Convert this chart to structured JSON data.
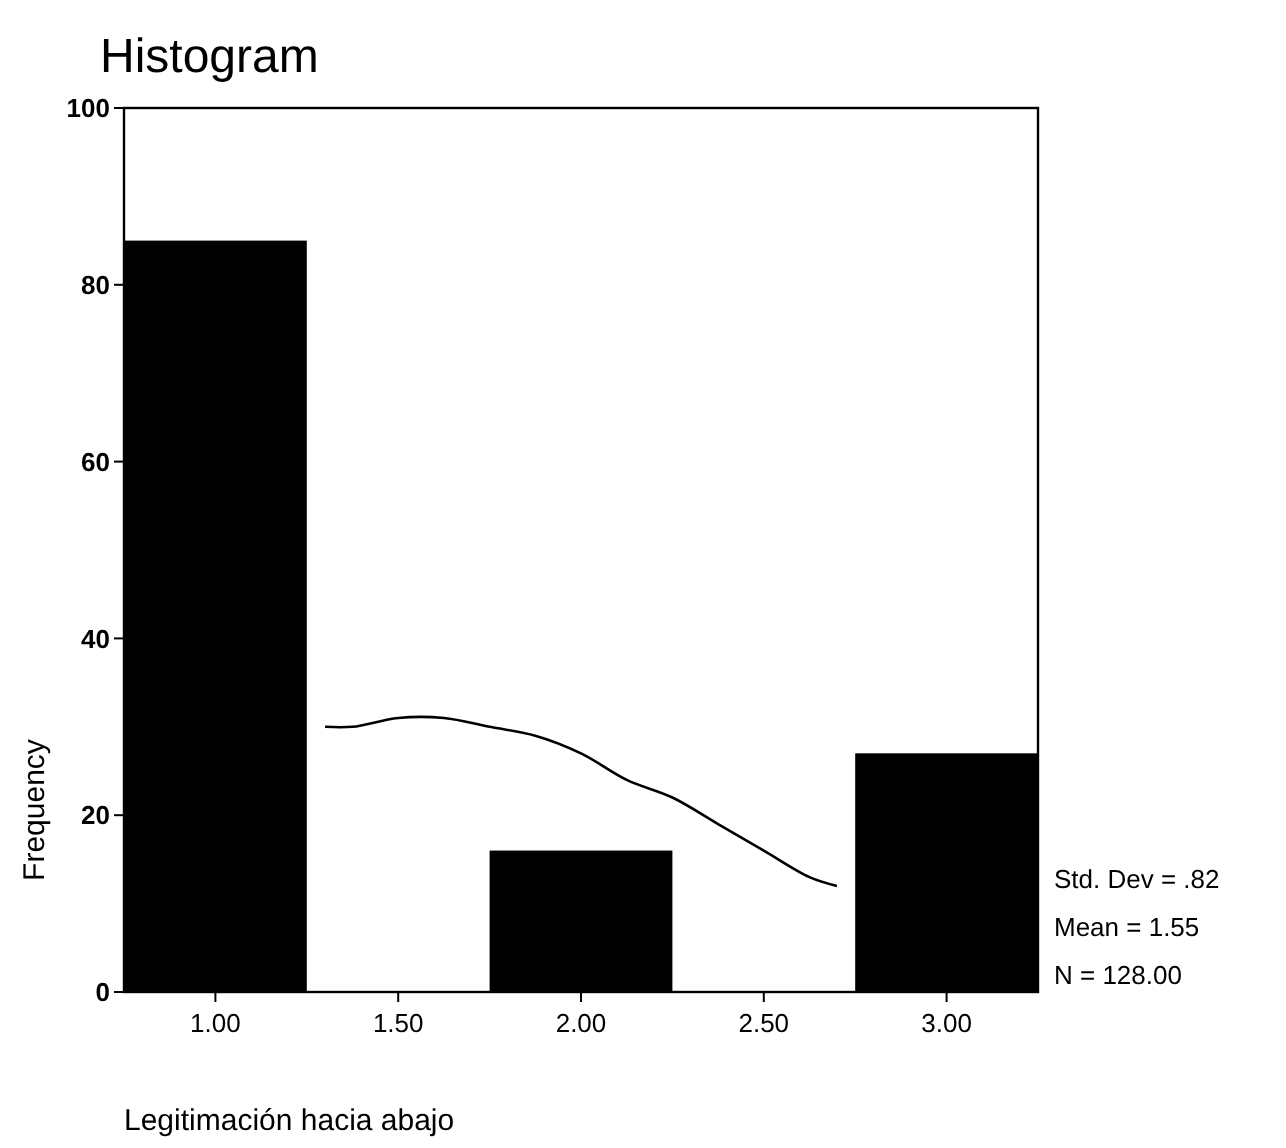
{
  "chart_data": {
    "type": "histogram",
    "title": "Histogram",
    "xlabel": "Legitimación hacia abajo",
    "ylabel": "Frequency",
    "bins": [
      0.75,
      1.25,
      1.75,
      2.25,
      2.75,
      3.25
    ],
    "series": [
      {
        "color": "#000000",
        "values": [
          85,
          0,
          16,
          0,
          27
        ]
      },
      {
        "type": "line",
        "color": "#000000",
        "x": [
          1.3,
          1.375,
          1.5,
          1.625,
          1.75,
          1.875,
          2.0,
          2.125,
          2.25,
          2.375,
          2.5,
          2.625,
          2.7
        ],
        "values": [
          30,
          30,
          31,
          31,
          30,
          29,
          27,
          24,
          22,
          19,
          16,
          13,
          12
        ]
      }
    ],
    "xlim": [
      0.75,
      3.25
    ],
    "xticks": [
      {
        "value": 1,
        "label": "1.00"
      },
      {
        "value": 1.5,
        "label": "1.50"
      },
      {
        "value": 2,
        "label": "2.00"
      },
      {
        "value": 2.5,
        "label": "2.50"
      },
      {
        "value": 3,
        "label": "3.00"
      }
    ],
    "ylim": [
      0,
      100
    ],
    "yticks": [
      0,
      20,
      40,
      60,
      80,
      100
    ],
    "grid": false,
    "annotations": [
      "Std. Dev = .82",
      "Mean = 1.55",
      "N = 128.00"
    ]
  }
}
